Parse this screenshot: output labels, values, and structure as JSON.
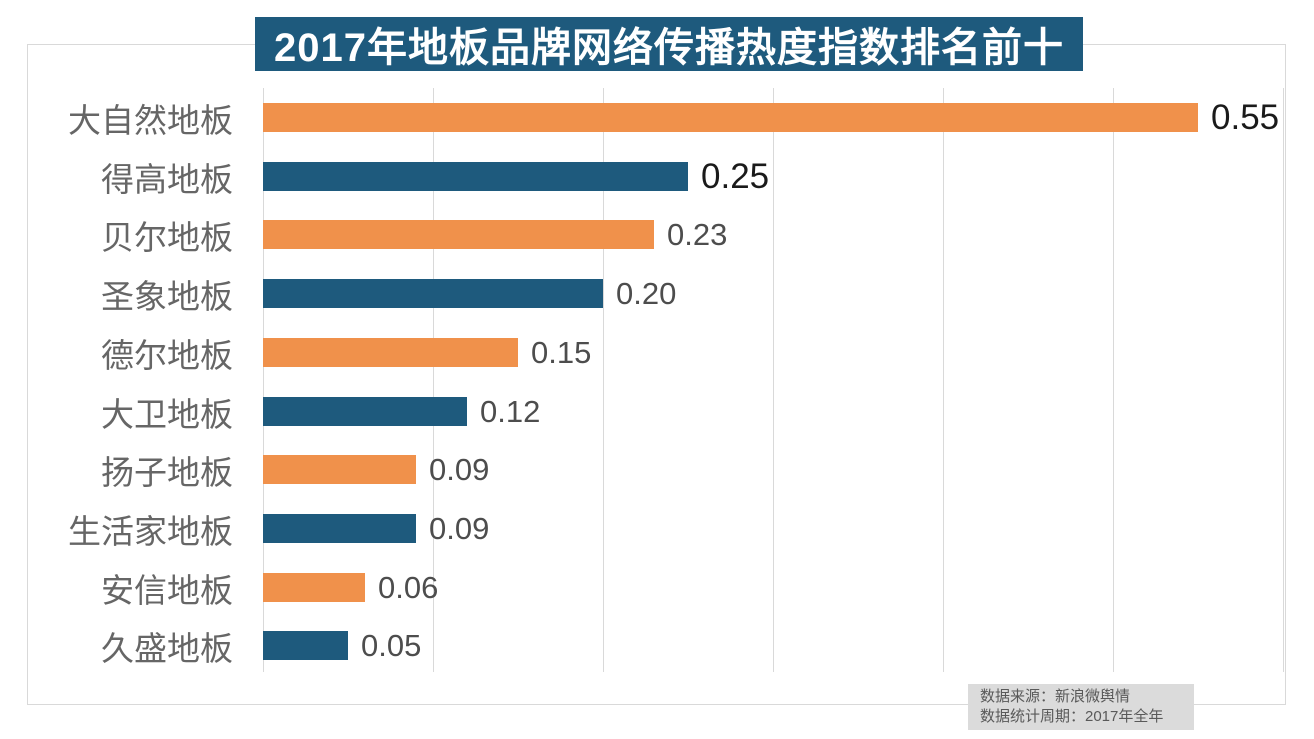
{
  "chart_data": {
    "type": "bar",
    "orientation": "horizontal",
    "title": "2017年地板品牌网络传播热度指数排名前十",
    "categories": [
      "大自然地板",
      "得高地板",
      "贝尔地板",
      "圣象地板",
      "德尔地板",
      "大卫地板",
      "扬子地板",
      "生活家地板",
      "安信地板",
      "久盛地板"
    ],
    "values": [
      0.55,
      0.25,
      0.23,
      0.2,
      0.15,
      0.12,
      0.09,
      0.09,
      0.06,
      0.05
    ],
    "value_labels": [
      "0.55",
      "0.25",
      "0.23",
      "0.20",
      "0.15",
      "0.12",
      "0.09",
      "0.09",
      "0.06",
      "0.05"
    ],
    "bar_colors": [
      "accent_orange",
      "accent_blue",
      "accent_orange",
      "accent_blue",
      "accent_orange",
      "accent_blue",
      "accent_orange",
      "accent_blue",
      "accent_orange",
      "accent_blue"
    ],
    "value_label_emphasis": [
      true,
      true,
      false,
      false,
      false,
      false,
      false,
      false,
      false,
      false
    ],
    "xlim": [
      0,
      0.6
    ],
    "grid_step": 0.1,
    "grid": "vertical-lines",
    "legend": "none",
    "xlabel": "",
    "ylabel": ""
  },
  "footer": {
    "line1": "数据来源：新浪微舆情",
    "line2": "数据统计周期：2017年全年"
  },
  "colors": {
    "accent_orange": "#F0914B",
    "accent_blue": "#1E5A7D",
    "title_bg": "#1E5A7D",
    "title_text": "#FFFFFF",
    "grid": "#D9D9D9",
    "frame_border": "#D9D9D9",
    "category_text": "#666666",
    "value_text": "#4D4D4D",
    "value_text_em": "#1A1A1A",
    "footer_bg": "#DBDBDB",
    "footer_text": "#595959",
    "page_bg": "#FFFFFF"
  }
}
